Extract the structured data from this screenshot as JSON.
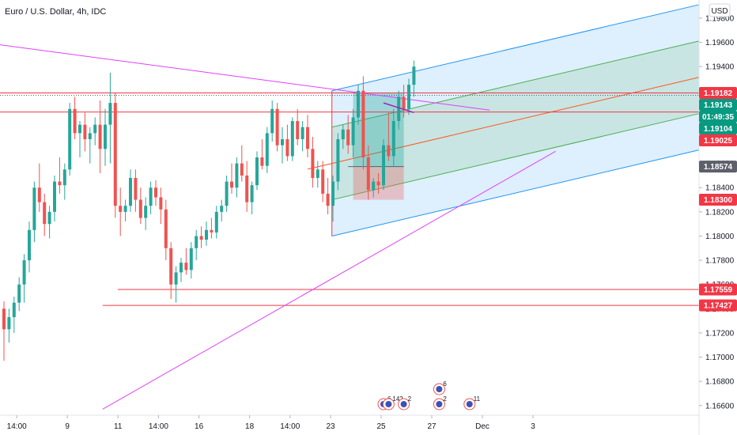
{
  "chart_data": {
    "type": "candlestick",
    "title": "Euro / U.S. Dollar, 4h, IDC",
    "currency_label": "USD",
    "ylim": [
      1.1652,
      1.1995
    ],
    "y_ticks": [
      "1.19800",
      "1.19600",
      "1.19400",
      "1.19200",
      "1.19000",
      "1.18800",
      "1.18600",
      "1.18400",
      "1.18200",
      "1.18000",
      "1.17800",
      "1.17600",
      "1.17400",
      "1.17200",
      "1.17000",
      "1.16800",
      "1.16600"
    ],
    "x_ticks": [
      {
        "label": "14:00",
        "bar": 3
      },
      {
        "label": "9",
        "bar": 13
      },
      {
        "label": "11",
        "bar": 23
      },
      {
        "label": "14:00",
        "bar": 31
      },
      {
        "label": "16",
        "bar": 39
      },
      {
        "label": "18",
        "bar": 49
      },
      {
        "label": "14:00",
        "bar": 57
      },
      {
        "label": "23",
        "bar": 65
      },
      {
        "label": "25",
        "bar": 75
      },
      {
        "label": "27",
        "bar": 85
      },
      {
        "label": "Dec",
        "bar": 95
      },
      {
        "label": "3",
        "bar": 105
      }
    ],
    "candles": [
      [
        1.174,
        1.1746,
        1.1697,
        1.1723
      ],
      [
        1.1723,
        1.174,
        1.1712,
        1.1733
      ],
      [
        1.1733,
        1.175,
        1.172,
        1.1745
      ],
      [
        1.1745,
        1.1766,
        1.1738,
        1.176
      ],
      [
        1.176,
        1.1785,
        1.1745,
        1.178
      ],
      [
        1.178,
        1.1812,
        1.177,
        1.1805
      ],
      [
        1.1805,
        1.1845,
        1.1795,
        1.184
      ],
      [
        1.184,
        1.186,
        1.182,
        1.1828
      ],
      [
        1.1828,
        1.1835,
        1.18,
        1.181
      ],
      [
        1.181,
        1.1825,
        1.1798,
        1.182
      ],
      [
        1.182,
        1.185,
        1.1812,
        1.1845
      ],
      [
        1.1845,
        1.1865,
        1.1835,
        1.1842
      ],
      [
        1.1842,
        1.186,
        1.183,
        1.1855
      ],
      [
        1.1855,
        1.191,
        1.185,
        1.1905
      ],
      [
        1.1905,
        1.1915,
        1.188,
        1.1885
      ],
      [
        1.1885,
        1.1895,
        1.1865,
        1.1892
      ],
      [
        1.1892,
        1.1902,
        1.187,
        1.188
      ],
      [
        1.188,
        1.189,
        1.186,
        1.1885
      ],
      [
        1.1885,
        1.1898,
        1.1875,
        1.1892
      ],
      [
        1.1892,
        1.1912,
        1.1852,
        1.1872
      ],
      [
        1.1872,
        1.1905,
        1.1858,
        1.1892
      ],
      [
        1.1892,
        1.1935,
        1.186,
        1.191
      ],
      [
        1.191,
        1.1918,
        1.1815,
        1.1825
      ],
      [
        1.1825,
        1.184,
        1.18,
        1.182
      ],
      [
        1.182,
        1.183,
        1.1812,
        1.1825
      ],
      [
        1.1825,
        1.1855,
        1.182,
        1.1848
      ],
      [
        1.1848,
        1.1855,
        1.182,
        1.183
      ],
      [
        1.183,
        1.184,
        1.181,
        1.1815
      ],
      [
        1.1815,
        1.1832,
        1.1805,
        1.1825
      ],
      [
        1.1825,
        1.1845,
        1.1818,
        1.184
      ],
      [
        1.184,
        1.1846,
        1.1825,
        1.1832
      ],
      [
        1.1832,
        1.184,
        1.181,
        1.1822
      ],
      [
        1.1822,
        1.183,
        1.178,
        1.179
      ],
      [
        1.179,
        1.1795,
        1.1748,
        1.176
      ],
      [
        1.176,
        1.1775,
        1.1745,
        1.177
      ],
      [
        1.177,
        1.1782,
        1.1762,
        1.1778
      ],
      [
        1.1778,
        1.179,
        1.1768,
        1.1772
      ],
      [
        1.1772,
        1.1795,
        1.1765,
        1.179
      ],
      [
        1.179,
        1.1805,
        1.178,
        1.18
      ],
      [
        1.18,
        1.1808,
        1.179,
        1.1797
      ],
      [
        1.1797,
        1.1812,
        1.1792,
        1.1805
      ],
      [
        1.1805,
        1.1815,
        1.1798,
        1.1803
      ],
      [
        1.1803,
        1.1825,
        1.1798,
        1.182
      ],
      [
        1.182,
        1.183,
        1.1812,
        1.1825
      ],
      [
        1.1825,
        1.185,
        1.182,
        1.1845
      ],
      [
        1.1845,
        1.186,
        1.1835,
        1.184
      ],
      [
        1.184,
        1.1865,
        1.1832,
        1.186
      ],
      [
        1.186,
        1.1875,
        1.1845,
        1.185
      ],
      [
        1.185,
        1.1862,
        1.182,
        1.1828
      ],
      [
        1.1828,
        1.1845,
        1.1818,
        1.1842
      ],
      [
        1.1842,
        1.187,
        1.1838,
        1.1865
      ],
      [
        1.1865,
        1.188,
        1.1855,
        1.1858
      ],
      [
        1.1858,
        1.189,
        1.1852,
        1.1885
      ],
      [
        1.1885,
        1.1912,
        1.1878,
        1.1905
      ],
      [
        1.1905,
        1.191,
        1.187,
        1.1875
      ],
      [
        1.1875,
        1.189,
        1.186,
        1.188
      ],
      [
        1.188,
        1.1892,
        1.1862,
        1.1866
      ],
      [
        1.1866,
        1.1898,
        1.1862,
        1.1895
      ],
      [
        1.1895,
        1.1905,
        1.1875,
        1.188
      ],
      [
        1.188,
        1.1895,
        1.187,
        1.189
      ],
      [
        1.189,
        1.19,
        1.1865,
        1.1872
      ],
      [
        1.1872,
        1.1882,
        1.184,
        1.1848
      ],
      [
        1.1848,
        1.1862,
        1.184,
        1.1855
      ],
      [
        1.1855,
        1.1862,
        1.1828,
        1.1835
      ],
      [
        1.1835,
        1.1848,
        1.1818,
        1.1825
      ],
      [
        1.1825,
        1.185,
        1.1812,
        1.1845
      ],
      [
        1.1845,
        1.1885,
        1.1838,
        1.188
      ],
      [
        1.188,
        1.1892,
        1.1872,
        1.1888
      ],
      [
        1.1888,
        1.19,
        1.1868,
        1.1875
      ],
      [
        1.1875,
        1.1905,
        1.1865,
        1.1898
      ],
      [
        1.1898,
        1.1925,
        1.1892,
        1.192
      ],
      [
        1.192,
        1.1932,
        1.1855,
        1.1865
      ],
      [
        1.1865,
        1.1875,
        1.183,
        1.1838
      ],
      [
        1.1838,
        1.1848,
        1.1832,
        1.1845
      ],
      [
        1.1845,
        1.1852,
        1.1835,
        1.1842
      ],
      [
        1.1842,
        1.188,
        1.1838,
        1.1875
      ],
      [
        1.1875,
        1.1902,
        1.1862,
        1.1866
      ],
      [
        1.1866,
        1.1905,
        1.1858,
        1.1895
      ],
      [
        1.1895,
        1.192,
        1.1888,
        1.1915
      ],
      [
        1.1915,
        1.1925,
        1.1898,
        1.1905
      ],
      [
        1.1905,
        1.193,
        1.19,
        1.1925
      ],
      [
        1.1925,
        1.1945,
        1.1915,
        1.194
      ]
    ],
    "price_tags": [
      {
        "label": "1.19182",
        "value": 1.19182,
        "color": "#f23645"
      },
      {
        "label": "1.19143",
        "value": 1.19143,
        "color": "#089981"
      },
      {
        "label": "01:49:35",
        "value": 1.19115,
        "color": "#089981"
      },
      {
        "label": "1.19104",
        "value": 1.19104,
        "color": "#089981"
      },
      {
        "label": "1.19025",
        "value": 1.19025,
        "color": "#f23645"
      },
      {
        "label": "1.18574",
        "value": 1.18574,
        "color": "#5d606b"
      },
      {
        "label": "1.18300",
        "value": 1.183,
        "color": "#f23645"
      },
      {
        "label": "1.17559",
        "value": 1.17559,
        "color": "#f23645"
      },
      {
        "label": "1.17427",
        "value": 1.17427,
        "color": "#f23645"
      }
    ],
    "events": [
      {
        "label": "6",
        "bar": 75,
        "row": 0
      },
      {
        "label": "142",
        "bar": 76,
        "row": 0
      },
      {
        "label": "2",
        "bar": 79,
        "row": 0
      },
      {
        "label": "6",
        "bar": 86,
        "row": -1
      },
      {
        "label": "2",
        "bar": 86,
        "row": 0
      },
      {
        "label": "11",
        "bar": 92,
        "row": 0
      }
    ],
    "colors": {
      "up": "#26a69a",
      "down": "#ef5350",
      "resistance": "#f23645",
      "trend": "#e040fb",
      "channel_outer": "#2196f3",
      "channel_mid": "#4caf50",
      "channel_median": "#ff5722"
    },
    "grid": false
  }
}
